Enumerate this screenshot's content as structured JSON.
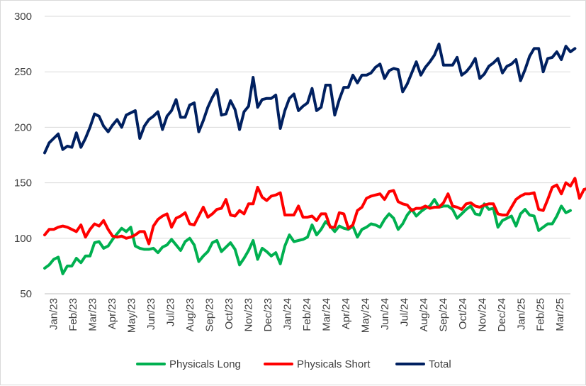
{
  "chart_data": {
    "type": "line",
    "title": "",
    "xlabel": "",
    "ylabel": "",
    "ylim": [
      50,
      300
    ],
    "yticks": [
      50,
      100,
      150,
      200,
      250,
      300
    ],
    "grid": true,
    "legend_position": "bottom",
    "x_tick_labels": [
      "Jan/23",
      "Feb/23",
      "Mar/23",
      "Apr/23",
      "May/23",
      "Jun/23",
      "Jul/23",
      "Aug/23",
      "Sep/23",
      "Oct/23",
      "Nov/23",
      "Dec/23",
      "Jan/24",
      "Feb/24",
      "Mar/24",
      "Apr/24",
      "May/24",
      "Jun/24",
      "Jul/24",
      "Aug/24",
      "Sep/24",
      "Oct/24",
      "Nov/24",
      "Dec/24",
      "Jan/25",
      "Feb/25",
      "Mar/25"
    ],
    "series": [
      {
        "name": "Physicals Long",
        "color": "#00b050",
        "values": [
          73,
          76,
          81,
          83,
          68,
          75,
          75,
          82,
          78,
          84,
          84,
          96,
          97,
          91,
          93,
          99,
          104,
          109,
          106,
          110,
          93,
          91,
          90,
          90,
          91,
          87,
          92,
          94,
          99,
          94,
          89,
          97,
          100,
          94,
          79,
          84,
          88,
          96,
          98,
          88,
          92,
          96,
          90,
          76,
          82,
          89,
          98,
          81,
          91,
          88,
          84,
          87,
          77,
          93,
          103,
          97,
          98,
          99,
          101,
          112,
          103,
          108,
          115,
          111,
          106,
          111,
          109,
          108,
          111,
          101,
          108,
          110,
          113,
          112,
          110,
          117,
          122,
          118,
          108,
          113,
          121,
          126,
          120,
          124,
          127,
          129,
          135,
          128,
          129,
          129,
          126,
          118,
          122,
          126,
          129,
          122,
          121,
          131,
          126,
          127,
          110,
          116,
          118,
          120,
          111,
          122,
          126,
          121,
          120,
          107,
          110,
          113,
          113,
          120,
          129,
          123,
          125
        ]
      },
      {
        "name": "Physicals Short",
        "color": "#ff0000",
        "values": [
          103,
          108,
          108,
          110,
          111,
          110,
          108,
          106,
          112,
          101,
          108,
          113,
          111,
          116,
          108,
          102,
          101,
          102,
          100,
          101,
          103,
          106,
          106,
          95,
          111,
          117,
          120,
          122,
          110,
          118,
          120,
          123,
          113,
          112,
          120,
          128,
          119,
          122,
          126,
          127,
          135,
          121,
          120,
          125,
          122,
          131,
          131,
          146,
          137,
          134,
          138,
          139,
          141,
          121,
          121,
          121,
          129,
          119,
          119,
          120,
          116,
          122,
          122,
          110,
          110,
          123,
          122,
          109,
          112,
          125,
          128,
          136,
          138,
          139,
          140,
          135,
          142,
          143,
          133,
          131,
          130,
          125,
          127,
          127,
          129,
          127,
          128,
          128,
          132,
          140,
          129,
          128,
          126,
          131,
          132,
          129,
          128,
          130,
          131,
          131,
          122,
          121,
          121,
          128,
          135,
          138,
          140,
          140,
          141,
          126,
          125,
          135,
          146,
          148,
          140,
          150,
          147,
          154,
          136,
          144,
          145,
          146
        ]
      },
      {
        "name": "Total",
        "color": "#002060",
        "values": [
          177,
          186,
          190,
          194,
          180,
          183,
          182,
          195,
          182,
          190,
          200,
          212,
          210,
          201,
          196,
          202,
          207,
          200,
          211,
          213,
          215,
          190,
          201,
          207,
          210,
          214,
          198,
          210,
          215,
          225,
          209,
          209,
          220,
          222,
          196,
          206,
          218,
          227,
          234,
          211,
          212,
          224,
          216,
          198,
          214,
          219,
          245,
          218,
          225,
          226,
          226,
          229,
          199,
          215,
          226,
          230,
          215,
          219,
          222,
          235,
          215,
          218,
          238,
          238,
          211,
          225,
          236,
          236,
          247,
          240,
          247,
          247,
          249,
          254,
          257,
          244,
          251,
          253,
          252,
          232,
          239,
          249,
          259,
          247,
          254,
          259,
          265,
          275,
          256,
          256,
          256,
          263,
          247,
          250,
          255,
          262,
          244,
          248,
          255,
          258,
          262,
          249,
          255,
          257,
          261,
          242,
          252,
          264,
          271,
          271,
          250,
          262,
          263,
          268,
          261,
          273,
          268,
          271
        ]
      }
    ]
  }
}
